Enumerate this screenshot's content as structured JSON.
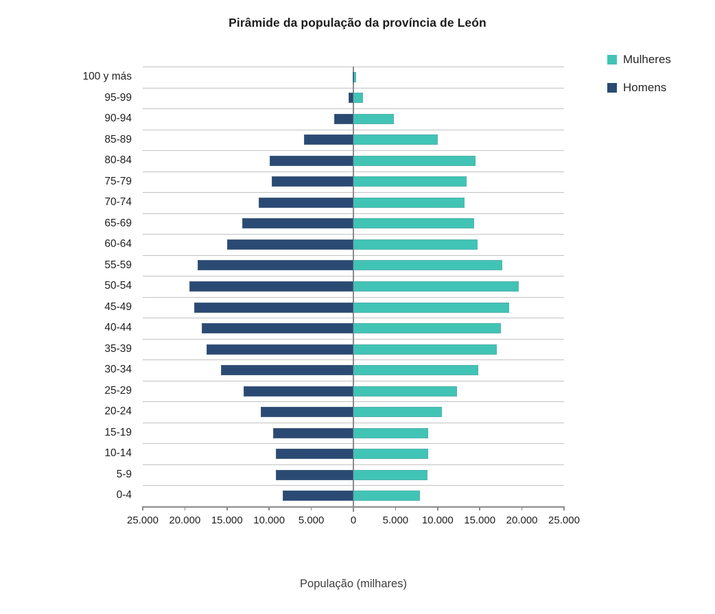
{
  "title": "Pirâmide da população da província de León",
  "xlabel": "População (milhares)",
  "legend": {
    "position": "top-right",
    "items": [
      {
        "label": "Mulheres",
        "color": "#41C4B5"
      },
      {
        "label": "Homens",
        "color": "#2B4A73"
      }
    ]
  },
  "colors": {
    "mulheres": "#41C4B5",
    "homens": "#2B4A73",
    "gridline": "#C2C2C2",
    "axis_line": "#8A8A8A",
    "text": "#1F1F1F",
    "axis_title_text": "#3D3D3D"
  },
  "chart_data": {
    "type": "bar",
    "subtype": "population-pyramid-horizontal",
    "title": "Pirâmide da população da província de León",
    "xlabel": "População (milhares)",
    "ylabel": "",
    "grid": "horizontal",
    "legend_position": "top-right",
    "xlim": [
      -25000,
      25000
    ],
    "x_tick_labels": [
      "25.000",
      "20.000",
      "15.000",
      "10.000",
      "5.000",
      "0",
      "5.000",
      "10.000",
      "15.000",
      "20.000",
      "25.000"
    ],
    "categories": [
      "100 y más",
      "95-99",
      "90-94",
      "85-89",
      "80-84",
      "75-79",
      "70-74",
      "65-69",
      "60-64",
      "55-59",
      "50-54",
      "45-49",
      "40-44",
      "35-39",
      "30-34",
      "25-29",
      "20-24",
      "15-19",
      "10-14",
      "5-9",
      "0-4"
    ],
    "series": [
      {
        "name": "Mulheres",
        "side": "right",
        "color": "#41C4B5",
        "values": [
          300,
          1150,
          4800,
          10000,
          14500,
          13400,
          13200,
          14300,
          14700,
          17700,
          19600,
          18500,
          17500,
          17000,
          14800,
          12300,
          10500,
          8900,
          8900,
          8800,
          7900
        ]
      },
      {
        "name": "Homens",
        "side": "left",
        "color": "#2B4A73",
        "values": [
          100,
          550,
          2300,
          5900,
          9900,
          9700,
          11200,
          13200,
          15000,
          18500,
          19500,
          18900,
          18000,
          17400,
          15700,
          13000,
          11000,
          9500,
          9200,
          9200,
          8400
        ]
      }
    ]
  }
}
